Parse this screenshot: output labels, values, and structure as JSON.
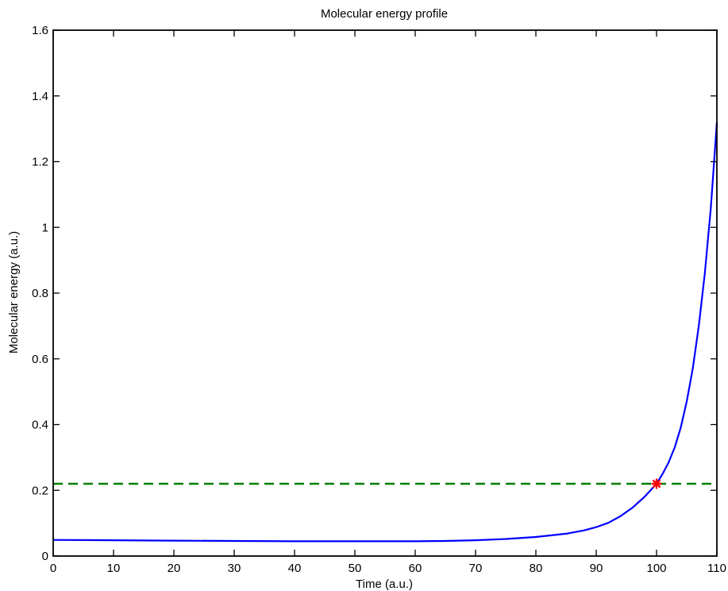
{
  "chart_data": {
    "type": "line",
    "title": "Molecular energy profile",
    "xlabel": "Time (a.u.)",
    "ylabel": "Molecular energy (a.u.)",
    "xlim": [
      0,
      110
    ],
    "ylim": [
      0,
      1.6
    ],
    "x_ticks": [
      0,
      10,
      20,
      30,
      40,
      50,
      60,
      70,
      80,
      90,
      100,
      110
    ],
    "x_tick_labels": [
      "0",
      "10",
      "20",
      "30",
      "40",
      "50",
      "60",
      "70",
      "80",
      "90",
      "100",
      "110"
    ],
    "y_ticks": [
      0,
      0.2,
      0.4,
      0.6,
      0.8,
      1.0,
      1.2,
      1.4,
      1.6
    ],
    "y_tick_labels": [
      "0",
      "0.2",
      "0.4",
      "0.6",
      "0.8",
      "1",
      "1.2",
      "1.4",
      "1.6"
    ],
    "grid": false,
    "series": [
      {
        "style": "solid",
        "color": "#0000ff",
        "x": [
          0,
          10,
          20,
          30,
          40,
          50,
          60,
          65,
          70,
          75,
          80,
          85,
          88,
          90,
          92,
          94,
          96,
          98,
          100,
          101,
          102,
          103,
          104,
          105,
          106,
          107,
          108,
          109,
          110
        ],
        "y": [
          0.049,
          0.048,
          0.047,
          0.046,
          0.045,
          0.045,
          0.045,
          0.046,
          0.048,
          0.052,
          0.058,
          0.068,
          0.078,
          0.088,
          0.101,
          0.121,
          0.147,
          0.18,
          0.22,
          0.25,
          0.285,
          0.33,
          0.39,
          0.47,
          0.57,
          0.7,
          0.86,
          1.06,
          1.32
        ]
      },
      {
        "style": "dashed",
        "color": "#008000",
        "x": [
          0,
          110
        ],
        "y": [
          0.22,
          0.22
        ]
      }
    ],
    "markers": [
      {
        "x": 100,
        "y": 0.22,
        "color": "#ff0000",
        "shape": "star"
      }
    ]
  }
}
